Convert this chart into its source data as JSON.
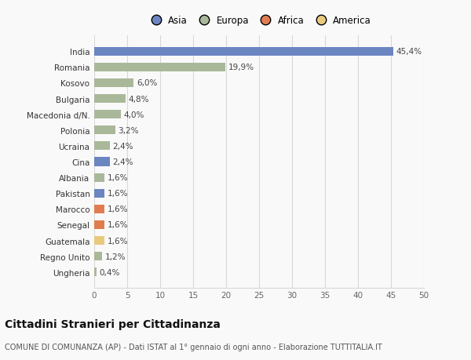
{
  "categories": [
    "Ungheria",
    "Regno Unito",
    "Guatemala",
    "Senegal",
    "Marocco",
    "Pakistan",
    "Albania",
    "Cina",
    "Ucraina",
    "Polonia",
    "Macedonia d/N.",
    "Bulgaria",
    "Kosovo",
    "Romania",
    "India"
  ],
  "values": [
    0.4,
    1.2,
    1.6,
    1.6,
    1.6,
    1.6,
    1.6,
    2.4,
    2.4,
    3.2,
    4.0,
    4.8,
    6.0,
    19.9,
    45.4
  ],
  "labels": [
    "0,4%",
    "1,2%",
    "1,6%",
    "1,6%",
    "1,6%",
    "1,6%",
    "1,6%",
    "2,4%",
    "2,4%",
    "3,2%",
    "4,0%",
    "4,8%",
    "6,0%",
    "19,9%",
    "45,4%"
  ],
  "colors": [
    "#aab89a",
    "#aab89a",
    "#e8c97e",
    "#e07d50",
    "#e07d50",
    "#6b85c0",
    "#aab89a",
    "#6b85c0",
    "#aab89a",
    "#aab89a",
    "#aab89a",
    "#aab89a",
    "#aab89a",
    "#aab89a",
    "#6b85c0"
  ],
  "continent_colors": {
    "Asia": "#6b85c0",
    "Europa": "#aab89a",
    "Africa": "#e07d50",
    "America": "#e8c97e"
  },
  "xlim": [
    0,
    50
  ],
  "xticks": [
    0,
    5,
    10,
    15,
    20,
    25,
    30,
    35,
    40,
    45,
    50
  ],
  "title": "Cittadini Stranieri per Cittadinanza",
  "subtitle": "COMUNE DI COMUNANZA (AP) - Dati ISTAT al 1° gennaio di ogni anno - Elaborazione TUTTITALIA.IT",
  "background_color": "#f9f9f9",
  "bar_height": 0.55,
  "grid_color": "#d8d8d8"
}
